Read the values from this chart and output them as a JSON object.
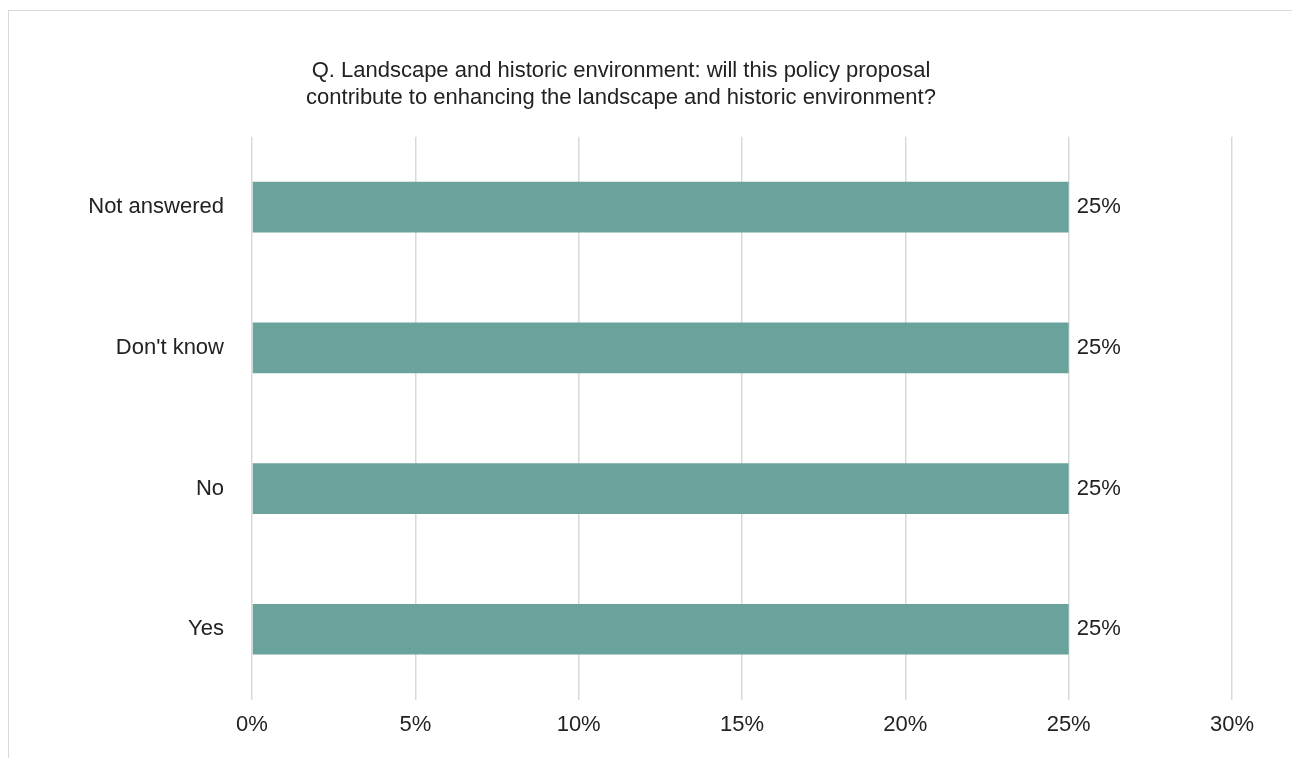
{
  "chart_data": {
    "type": "bar",
    "orientation": "horizontal",
    "title": "Q. Landscape and historic environment: will this policy proposal\ncontribute to enhancing the landscape and historic environment?",
    "categories": [
      "Not answered",
      "Don't know",
      "No",
      "Yes"
    ],
    "series": [
      {
        "color": "#6aa39c",
        "values": [
          25,
          25,
          25,
          25
        ]
      }
    ],
    "value_labels": [
      "25%",
      "25%",
      "25%",
      "25%"
    ],
    "xlim": [
      0,
      30
    ],
    "xticks": [
      {
        "value": 0,
        "label": "0%"
      },
      {
        "value": 5,
        "label": "5%"
      },
      {
        "value": 10,
        "label": "10%"
      },
      {
        "value": 15,
        "label": "15%"
      },
      {
        "value": 20,
        "label": "20%"
      },
      {
        "value": 25,
        "label": "25%"
      },
      {
        "value": 30,
        "label": "30%"
      }
    ],
    "grid": "x",
    "legend": false
  }
}
